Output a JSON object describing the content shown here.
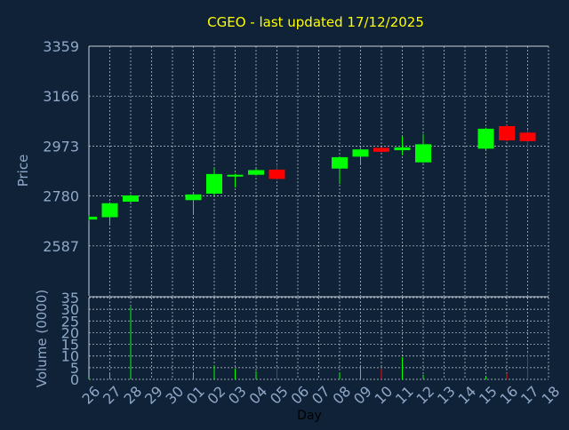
{
  "chart_data": {
    "type": "candlestick",
    "title": "CGEO - last updated 17/12/2025",
    "xlabel": "Day",
    "price_panel": {
      "ylabel": "Price",
      "yticks": [
        2587,
        2780,
        2973,
        3166,
        3359
      ],
      "ylim": [
        2394,
        3359
      ]
    },
    "volume_panel": {
      "ylabel": "Volume (0000)",
      "yticks": [
        0,
        5,
        10,
        15,
        20,
        25,
        30,
        35
      ],
      "ylim": [
        0,
        35
      ]
    },
    "x_tick_labels": [
      "26",
      "27",
      "28",
      "29",
      "30",
      "01",
      "02",
      "03",
      "04",
      "05",
      "06",
      "07",
      "08",
      "09",
      "10",
      "11",
      "12",
      "13",
      "14",
      "15",
      "16",
      "17",
      "18"
    ],
    "candles": [
      {
        "day": "26",
        "open": 2689,
        "close": 2700,
        "high": 2704,
        "low": 2685,
        "volume": 0.5
      },
      {
        "day": "27",
        "open": 2698,
        "close": 2752,
        "high": 2756,
        "low": 2670,
        "volume": 3.0
      },
      {
        "day": "28",
        "open": 2758,
        "close": 2782,
        "high": 2786,
        "low": 2755,
        "volume": 31.0
      },
      {
        "day": "01",
        "open": 2764,
        "close": 2786,
        "high": 2790,
        "low": 2710,
        "volume": 2.5
      },
      {
        "day": "02",
        "open": 2789,
        "close": 2865,
        "high": 2890,
        "low": 2780,
        "volume": 6.0
      },
      {
        "day": "03",
        "open": 2856,
        "close": 2862,
        "high": 2866,
        "low": 2813,
        "volume": 4.5
      },
      {
        "day": "04",
        "open": 2862,
        "close": 2880,
        "high": 2886,
        "low": 2858,
        "volume": 3.5
      },
      {
        "day": "05",
        "open": 2882,
        "close": 2846,
        "high": 2902,
        "low": 2842,
        "volume": 5.0
      },
      {
        "day": "08",
        "open": 2886,
        "close": 2930,
        "high": 2934,
        "low": 2826,
        "volume": 3.0
      },
      {
        "day": "09",
        "open": 2932,
        "close": 2960,
        "high": 2966,
        "low": 2900,
        "volume": 5.5
      },
      {
        "day": "10",
        "open": 2966,
        "close": 2951,
        "high": 2968,
        "low": 2948,
        "volume": 4.5
      },
      {
        "day": "11",
        "open": 2957,
        "close": 2968,
        "high": 3010,
        "low": 2938,
        "volume": 9.5
      },
      {
        "day": "12",
        "open": 2910,
        "close": 2980,
        "high": 3020,
        "low": 2908,
        "volume": 2.0
      },
      {
        "day": "15",
        "open": 2963,
        "close": 3040,
        "high": 3044,
        "low": 2960,
        "volume": 1.0
      },
      {
        "day": "16",
        "open": 3050,
        "close": 2995,
        "high": 3054,
        "low": 2990,
        "volume": 2.5
      },
      {
        "day": "17",
        "open": 3025,
        "close": 2992,
        "high": 3036,
        "low": 2965,
        "volume": 11.0
      }
    ],
    "colors": {
      "background": "#0f2237",
      "up": "#00ff00",
      "down": "#ff0000",
      "grid": "#c8d0d8",
      "axis_text": "#8fa8c8",
      "title_text": "#ffff00",
      "xlabel_text": "#000000"
    },
    "grid": true
  }
}
